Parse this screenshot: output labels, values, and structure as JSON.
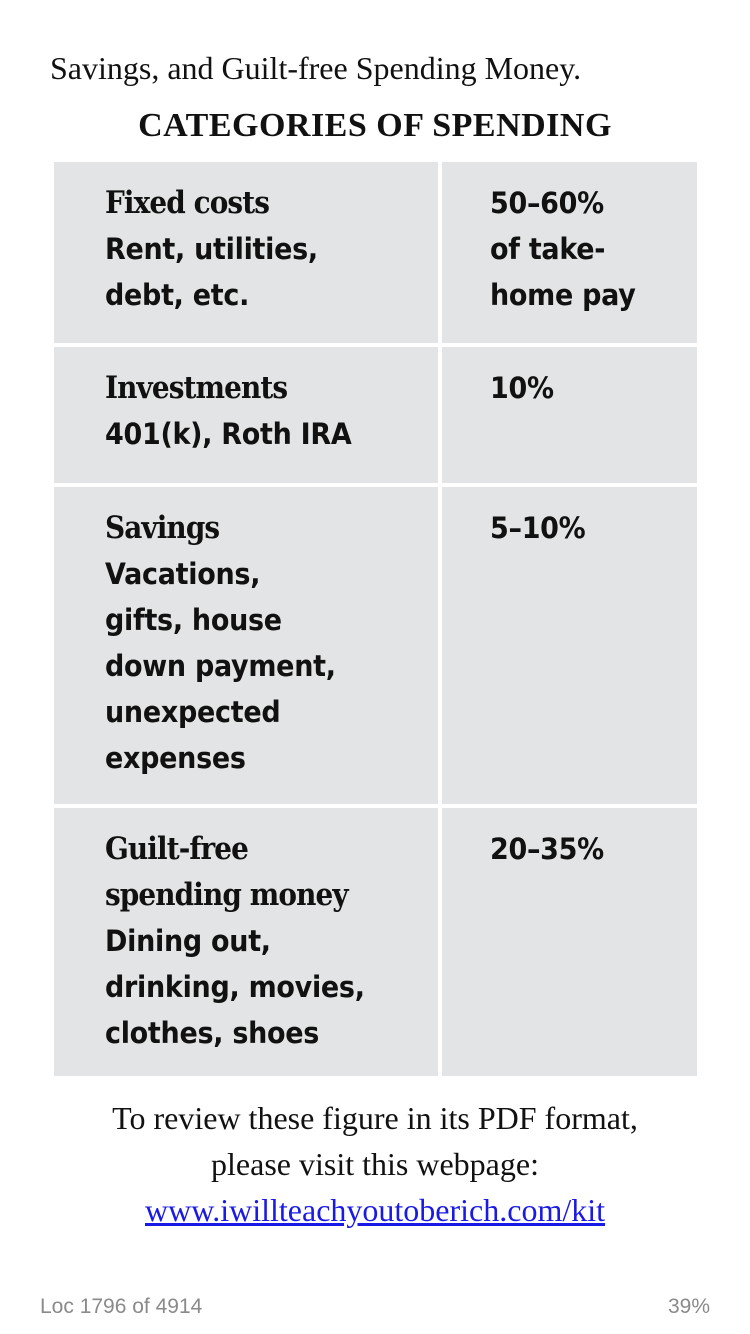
{
  "intro_text": "Savings, and Guilt-free Spending Money.",
  "table_title": "CATEGORIES OF SPENDING",
  "rows": [
    {
      "name": "Fixed costs",
      "desc": "Rent, utilities,\ndebt, etc.",
      "pct": "50–60%\nof take-\nhome pay"
    },
    {
      "name": "Investments",
      "desc": "401(k), Roth IRA",
      "pct": "10%"
    },
    {
      "name": "Savings",
      "desc": "Vacations,\ngifts, house\ndown payment,\nunexpected\nexpenses",
      "pct": "5–10%"
    },
    {
      "name": "Guilt-free\nspending money",
      "desc": "Dining out,\ndrinking, movies,\nclothes, shoes",
      "pct": "20–35%"
    }
  ],
  "footer": {
    "line1": "To review these figure in its PDF format,",
    "line2": "please visit this webpage:",
    "link": "www.iwillteachyoutoberich.com/kit"
  },
  "status": {
    "location": "Loc 1796 of 4914",
    "progress": "39%"
  }
}
